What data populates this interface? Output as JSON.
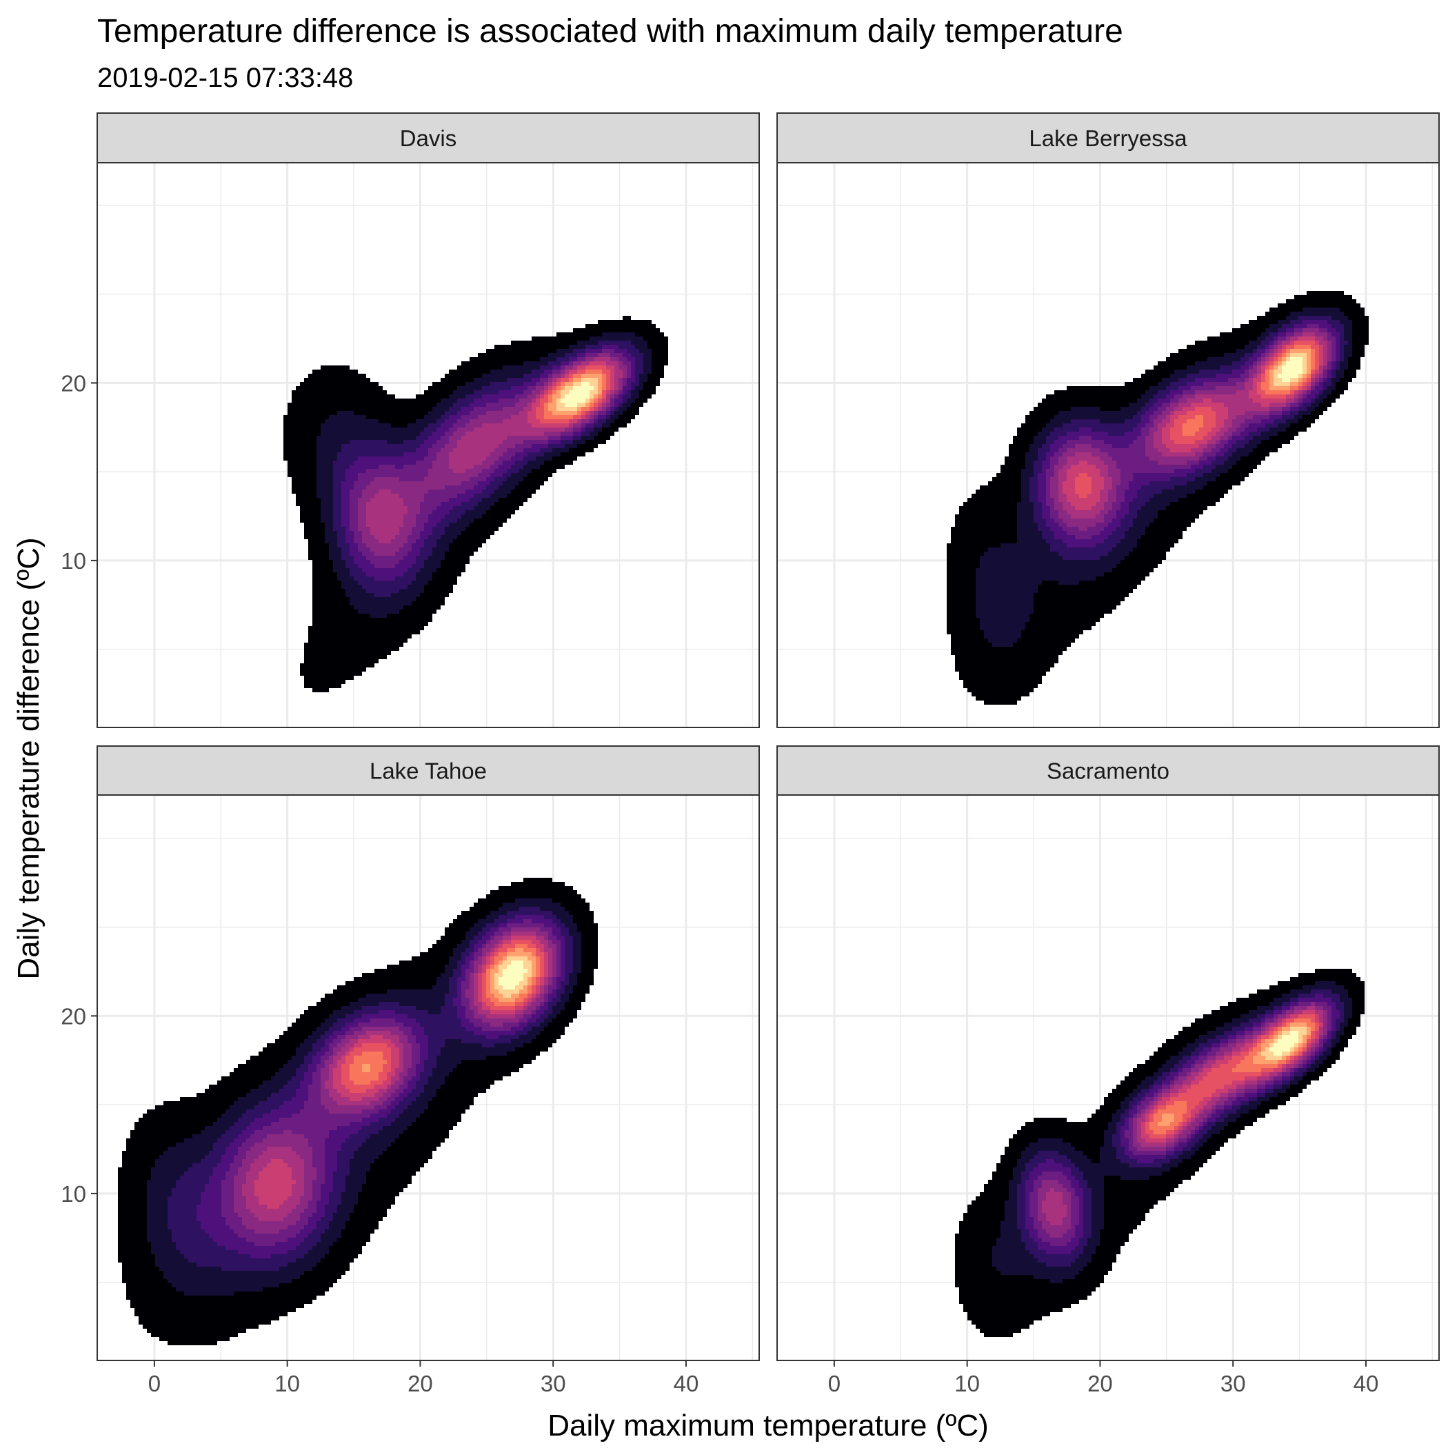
{
  "chart_data": {
    "type": "density_2d_filled",
    "title": "Temperature difference is associated with maximum daily temperature",
    "subtitle": "2019-02-15 07:33:48",
    "xlabel": "Daily maximum temperature (ºC)",
    "ylabel": "Daily temperature difference (ºC)",
    "xlim": [
      -4.3,
      45.5
    ],
    "ylim": [
      0.6,
      32.4
    ],
    "x_ticks": [
      0,
      10,
      20,
      30,
      40
    ],
    "y_ticks": [
      10,
      20
    ],
    "grid": true,
    "colors": [
      "#000004",
      "#140E36",
      "#2E1161",
      "#4E117B",
      "#6B1D81",
      "#8A2981",
      "#A8327D",
      "#CB3E72",
      "#E75263",
      "#F8765C",
      "#FEA16E",
      "#FED395",
      "#FCFDBF"
    ],
    "panels": [
      {
        "name": "Davis",
        "density": [
          {
            "x": 32,
            "y": 19.4,
            "sx": 2.8,
            "sy": 1.25,
            "rot": 25,
            "w": 1.0
          },
          {
            "x": 24,
            "y": 16.4,
            "sx": 3.6,
            "sy": 1.9,
            "rot": 30,
            "w": 0.5
          },
          {
            "x": 17,
            "y": 12.3,
            "sx": 2.3,
            "sy": 2.6,
            "rot": 15,
            "w": 0.45
          },
          {
            "x": 19,
            "y": 10.5,
            "sx": 8.5,
            "sy": 2.5,
            "rot": 45,
            "w": 0.08
          },
          {
            "x": 14,
            "y": 16.5,
            "sx": 2.6,
            "sy": 3.0,
            "rot": 35,
            "w": 0.12
          }
        ]
      },
      {
        "name": "Lake Berryessa",
        "density": [
          {
            "x": 34.5,
            "y": 20.8,
            "sx": 2.4,
            "sy": 1.3,
            "rot": 30,
            "w": 1.0
          },
          {
            "x": 27,
            "y": 17.6,
            "sx": 3.0,
            "sy": 1.6,
            "rot": 20,
            "w": 0.68
          },
          {
            "x": 18.5,
            "y": 14.3,
            "sx": 2.3,
            "sy": 2.3,
            "rot": 30,
            "w": 0.62
          },
          {
            "x": 22,
            "y": 13.0,
            "sx": 9.0,
            "sy": 2.7,
            "rot": 40,
            "w": 0.1
          },
          {
            "x": 12,
            "y": 8.5,
            "sx": 2.2,
            "sy": 3.5,
            "rot": 10,
            "w": 0.12
          }
        ]
      },
      {
        "name": "Lake Tahoe",
        "density": [
          {
            "x": 27,
            "y": 22.3,
            "sx": 2.6,
            "sy": 1.8,
            "rot": 30,
            "w": 0.78
          },
          {
            "x": 16,
            "y": 17.2,
            "sx": 2.8,
            "sy": 1.8,
            "rot": 20,
            "w": 0.55
          },
          {
            "x": 9,
            "y": 10.5,
            "sx": 3.0,
            "sy": 2.8,
            "rot": 40,
            "w": 0.4
          },
          {
            "x": 13,
            "y": 13.0,
            "sx": 10.0,
            "sy": 3.5,
            "rot": 35,
            "w": 0.1
          },
          {
            "x": 2,
            "y": 9.0,
            "sx": 2.5,
            "sy": 3.5,
            "rot": 20,
            "w": 0.12
          }
        ]
      },
      {
        "name": "Sacramento",
        "density": [
          {
            "x": 34.5,
            "y": 18.7,
            "sx": 2.4,
            "sy": 1.1,
            "rot": 30,
            "w": 1.0
          },
          {
            "x": 29,
            "y": 16.6,
            "sx": 3.2,
            "sy": 1.3,
            "rot": 25,
            "w": 0.7
          },
          {
            "x": 24.5,
            "y": 13.8,
            "sx": 2.0,
            "sy": 1.2,
            "rot": 20,
            "w": 0.66
          },
          {
            "x": 16.5,
            "y": 9.3,
            "sx": 1.7,
            "sy": 2.2,
            "rot": 20,
            "w": 0.56
          },
          {
            "x": 22,
            "y": 11.5,
            "sx": 9.0,
            "sy": 2.6,
            "rot": 40,
            "w": 0.08
          },
          {
            "x": 12,
            "y": 6.5,
            "sx": 2.0,
            "sy": 2.5,
            "rot": 10,
            "w": 0.1
          }
        ]
      }
    ]
  }
}
